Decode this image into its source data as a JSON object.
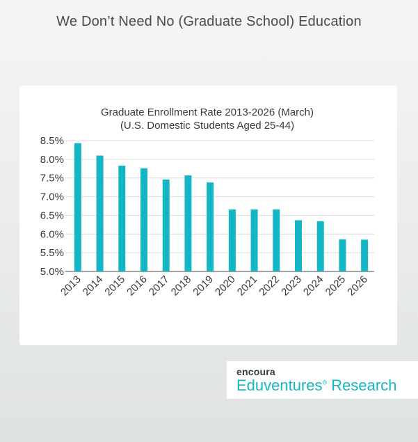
{
  "page": {
    "headline": "We Don’t Need No (Graduate School) Education"
  },
  "chart_data": {
    "type": "bar",
    "title_line1": "Graduate Enrollment Rate 2013-2026 (March)",
    "title_line2": "(U.S. Domestic Students Aged 25-44)",
    "categories": [
      "2013",
      "2014",
      "2015",
      "2016",
      "2017",
      "2018",
      "2019",
      "2020",
      "2021",
      "2022",
      "2023",
      "2024",
      "2025",
      "2026"
    ],
    "values": [
      8.43,
      8.1,
      7.83,
      7.76,
      7.46,
      7.57,
      7.38,
      6.66,
      6.66,
      6.66,
      6.37,
      6.34,
      5.86,
      5.85
    ],
    "ylim": [
      5.0,
      8.5
    ],
    "yticks": [
      "5.0%",
      "5.5%",
      "6.0%",
      "6.5%",
      "7.0%",
      "7.5%",
      "8.0%",
      "8.5%"
    ],
    "ytick_values": [
      5.0,
      5.5,
      6.0,
      6.5,
      7.0,
      7.5,
      8.0,
      8.5
    ],
    "bar_color": "#15b6c4",
    "grid": true
  },
  "brand": {
    "name": "encoura",
    "product": "Eduventures",
    "reg_mark": "®",
    "suffix": " Research",
    "accent": "#15b6c4"
  }
}
